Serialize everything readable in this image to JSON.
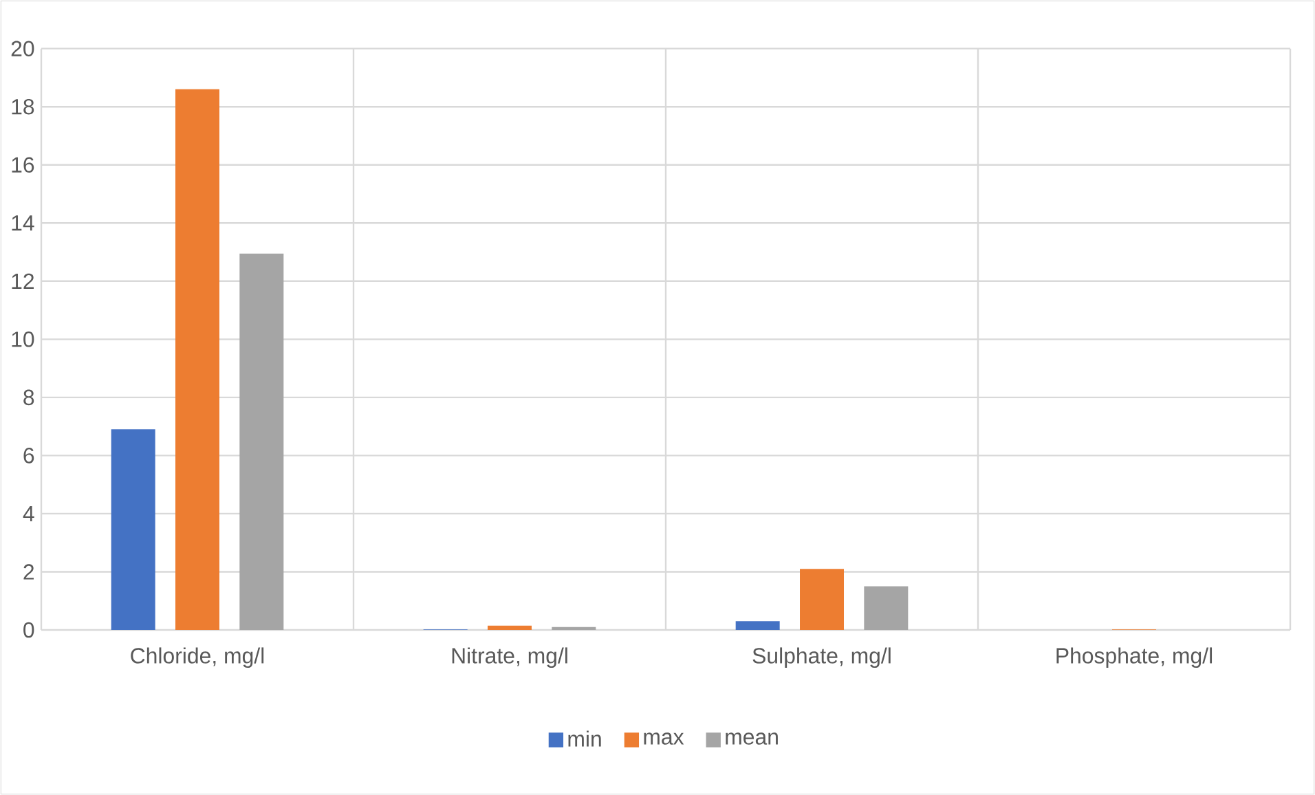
{
  "chart_data": {
    "type": "bar",
    "categories": [
      "Chloride, mg/l",
      "Nitrate, mg/l",
      "Sulphate, mg/l",
      "Phosphate, mg/l"
    ],
    "series": [
      {
        "name": "min",
        "color": "#4472c4",
        "values": [
          6.9,
          0.02,
          0.3,
          0
        ]
      },
      {
        "name": "max",
        "color": "#ed7d31",
        "values": [
          18.6,
          0.15,
          2.1,
          0.02
        ]
      },
      {
        "name": "mean",
        "color": "#a5a5a5",
        "values": [
          12.95,
          0.1,
          1.5,
          null
        ]
      }
    ],
    "ylim": [
      0,
      20
    ],
    "yticks": [
      0,
      2,
      4,
      6,
      8,
      10,
      12,
      14,
      16,
      18,
      20
    ],
    "grid": true,
    "legend": "bottom"
  }
}
